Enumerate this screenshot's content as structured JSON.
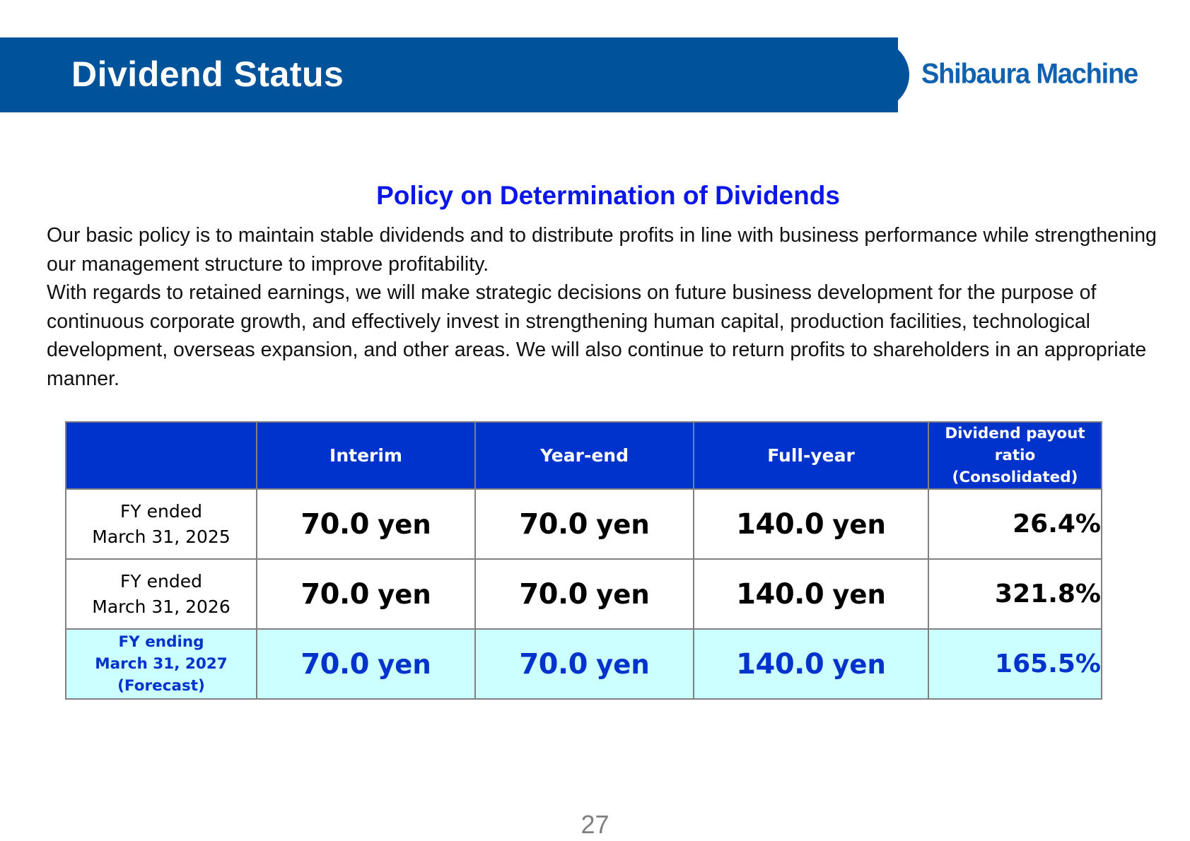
{
  "header": {
    "title": "Dividend Status",
    "logo_text": "Shibaura Machine"
  },
  "policy": {
    "title": "Policy on Determination of Dividends",
    "paragraph_1": "Our basic policy is to maintain stable dividends and to distribute profits in line with business performance while strengthening our management structure to improve profitability.",
    "paragraph_2": "With regards to retained earnings, we will make strategic decisions on future business development for the purpose of continuous corporate growth, and effectively invest in strengthening human capital, production facilities, technological development, overseas expansion, and other areas. We will also continue to return profits to shareholders in an appropriate manner."
  },
  "table": {
    "headers": {
      "blank": "",
      "interim": "Interim",
      "year_end": "Year-end",
      "full_year": "Full-year",
      "payout_line1": "Dividend payout",
      "payout_line2": "ratio",
      "payout_line3": "(Consolidated)"
    },
    "rows": [
      {
        "label_line1": "FY ended",
        "label_line2": "March 31, 2025",
        "label_line3": "",
        "interim": "70.0",
        "year_end": "70.0",
        "full_year": "140.0",
        "unit": "yen",
        "payout": "26.4%"
      },
      {
        "label_line1": "FY ended",
        "label_line2": "March 31, 2026",
        "label_line3": "",
        "interim": "70.0",
        "year_end": "70.0",
        "full_year": "140.0",
        "unit": "yen",
        "payout": "321.8%"
      },
      {
        "label_line1": "FY ending",
        "label_line2": "March 31, 2027",
        "label_line3": "(Forecast)",
        "interim": "70.0",
        "year_end": "70.0",
        "full_year": "140.0",
        "unit": "yen",
        "payout": "165.5%"
      }
    ]
  },
  "footer": {
    "page_number": "27"
  },
  "colors": {
    "header_band": "#00529b",
    "policy_title": "#0b17e8",
    "table_header": "#0033cc",
    "forecast_row_bg": "#ccffff",
    "forecast_text": "#0033cc"
  }
}
